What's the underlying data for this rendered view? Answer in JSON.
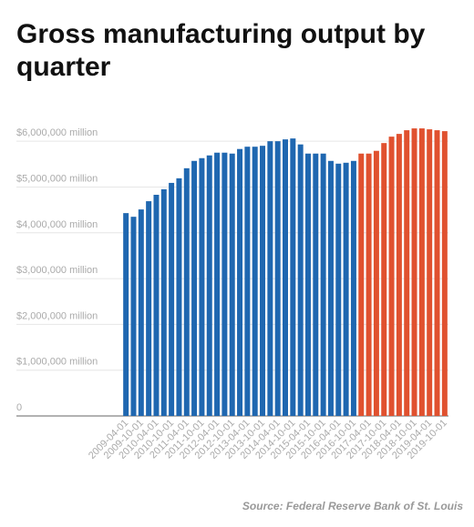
{
  "chart_data": {
    "type": "bar",
    "title": "Gross manufacturing output by quarter",
    "source": "Source: Federal Reserve Bank of St. Louis",
    "categories": [
      "2009-04-01",
      null,
      "2009-10-01",
      null,
      "2010-04-01",
      null,
      "2010-10-01",
      null,
      "2011-04-01",
      null,
      "2011-10-01",
      null,
      "2012-04-01",
      null,
      "2012-10-01",
      null,
      "2013-04-01",
      null,
      "2013-10-01",
      null,
      "2014-04-01",
      null,
      "2014-10-01",
      null,
      "2015-04-01",
      null,
      "2015-10-01",
      null,
      "2016-04-01",
      null,
      "2016-10-01",
      null,
      "2017-04-01",
      null,
      "2017-10-01",
      null,
      "2018-04-01",
      null,
      "2018-10-01",
      null,
      "2019-04-01",
      null,
      "2019-10-01"
    ],
    "values": [
      4430000,
      4350000,
      4510000,
      4690000,
      4830000,
      4950000,
      5090000,
      5190000,
      5410000,
      5570000,
      5630000,
      5690000,
      5750000,
      5750000,
      5730000,
      5830000,
      5880000,
      5880000,
      5900000,
      6000000,
      6000000,
      6040000,
      6060000,
      5930000,
      5730000,
      5730000,
      5730000,
      5570000,
      5510000,
      5530000,
      5570000,
      5730000,
      5730000,
      5790000,
      5960000,
      6100000,
      6160000,
      6240000,
      6280000,
      6280000,
      6260000,
      6240000,
      6220000
    ],
    "colors": [
      "#1f67b0",
      "#1f67b0",
      "#1f67b0",
      "#1f67b0",
      "#1f67b0",
      "#1f67b0",
      "#1f67b0",
      "#1f67b0",
      "#1f67b0",
      "#1f67b0",
      "#1f67b0",
      "#1f67b0",
      "#1f67b0",
      "#1f67b0",
      "#1f67b0",
      "#1f67b0",
      "#1f67b0",
      "#1f67b0",
      "#1f67b0",
      "#1f67b0",
      "#1f67b0",
      "#1f67b0",
      "#1f67b0",
      "#1f67b0",
      "#1f67b0",
      "#1f67b0",
      "#1f67b0",
      "#1f67b0",
      "#1f67b0",
      "#1f67b0",
      "#1f67b0",
      "#e0512f",
      "#e0512f",
      "#e0512f",
      "#e0512f",
      "#e0512f",
      "#e0512f",
      "#e0512f",
      "#e0512f",
      "#e0512f",
      "#e0512f",
      "#e0512f",
      "#e0512f"
    ],
    "ylim": [
      0,
      6500000
    ],
    "yticks": [
      0,
      {
        "value": 1000000,
        "label": "$1,000,000 million"
      },
      {
        "value": 2000000,
        "label": "$2,000,000 million"
      },
      {
        "value": 3000000,
        "label": "$3,000,000 million"
      },
      {
        "value": 4000000,
        "label": "$4,000,000 million"
      },
      {
        "value": 5000000,
        "label": "$5,000,000 million"
      },
      {
        "value": 6000000,
        "label": "$6,000,000 million"
      }
    ],
    "grid": true
  }
}
